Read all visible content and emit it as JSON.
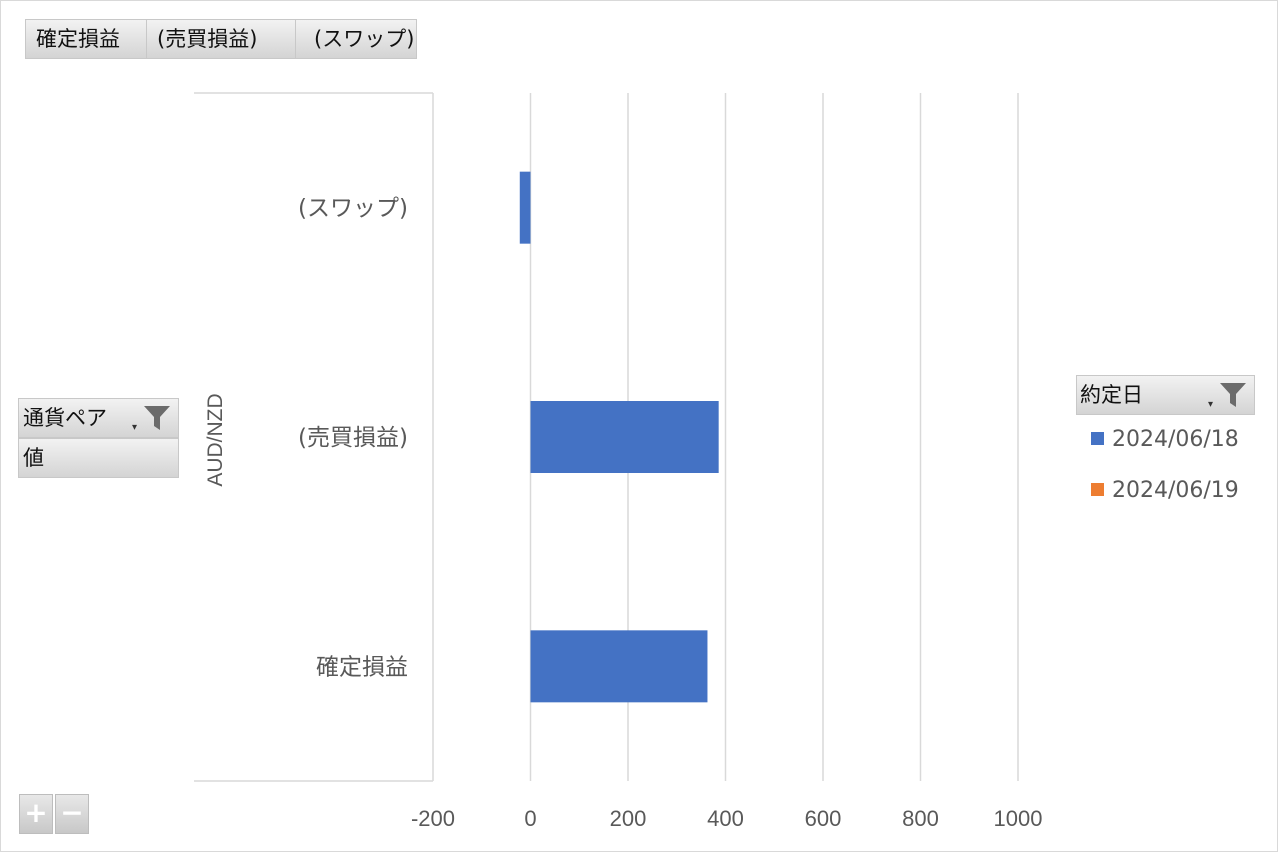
{
  "value_fields": [
    "確定損益",
    "(売買損益)",
    "(スワップ)"
  ],
  "axis_field": {
    "label": "通貨ペア",
    "values_label": "値",
    "dropdown_glyph": "▾",
    "icon": "filter-icon"
  },
  "legend_field": {
    "label": "約定日",
    "dropdown_glyph": "▾",
    "icon": "filter-icon"
  },
  "zoom": {
    "plus": "+",
    "minus": "−"
  },
  "chart_data": {
    "type": "bar",
    "orientation": "horizontal",
    "group_label": "AUD/NZD",
    "categories": [
      "(スワップ)",
      "(売買損益)",
      "確定損益"
    ],
    "series": [
      {
        "name": "2024/06/18",
        "color": "#4472c4",
        "values": [
          -22,
          386,
          363
        ]
      },
      {
        "name": "2024/06/19",
        "color": "#ed7d31",
        "values": [
          null,
          null,
          null
        ]
      }
    ],
    "xlim": [
      -200,
      1000
    ],
    "xticks": [
      -200,
      0,
      200,
      400,
      600,
      800,
      1000
    ],
    "grid": true,
    "legend_position": "right"
  }
}
